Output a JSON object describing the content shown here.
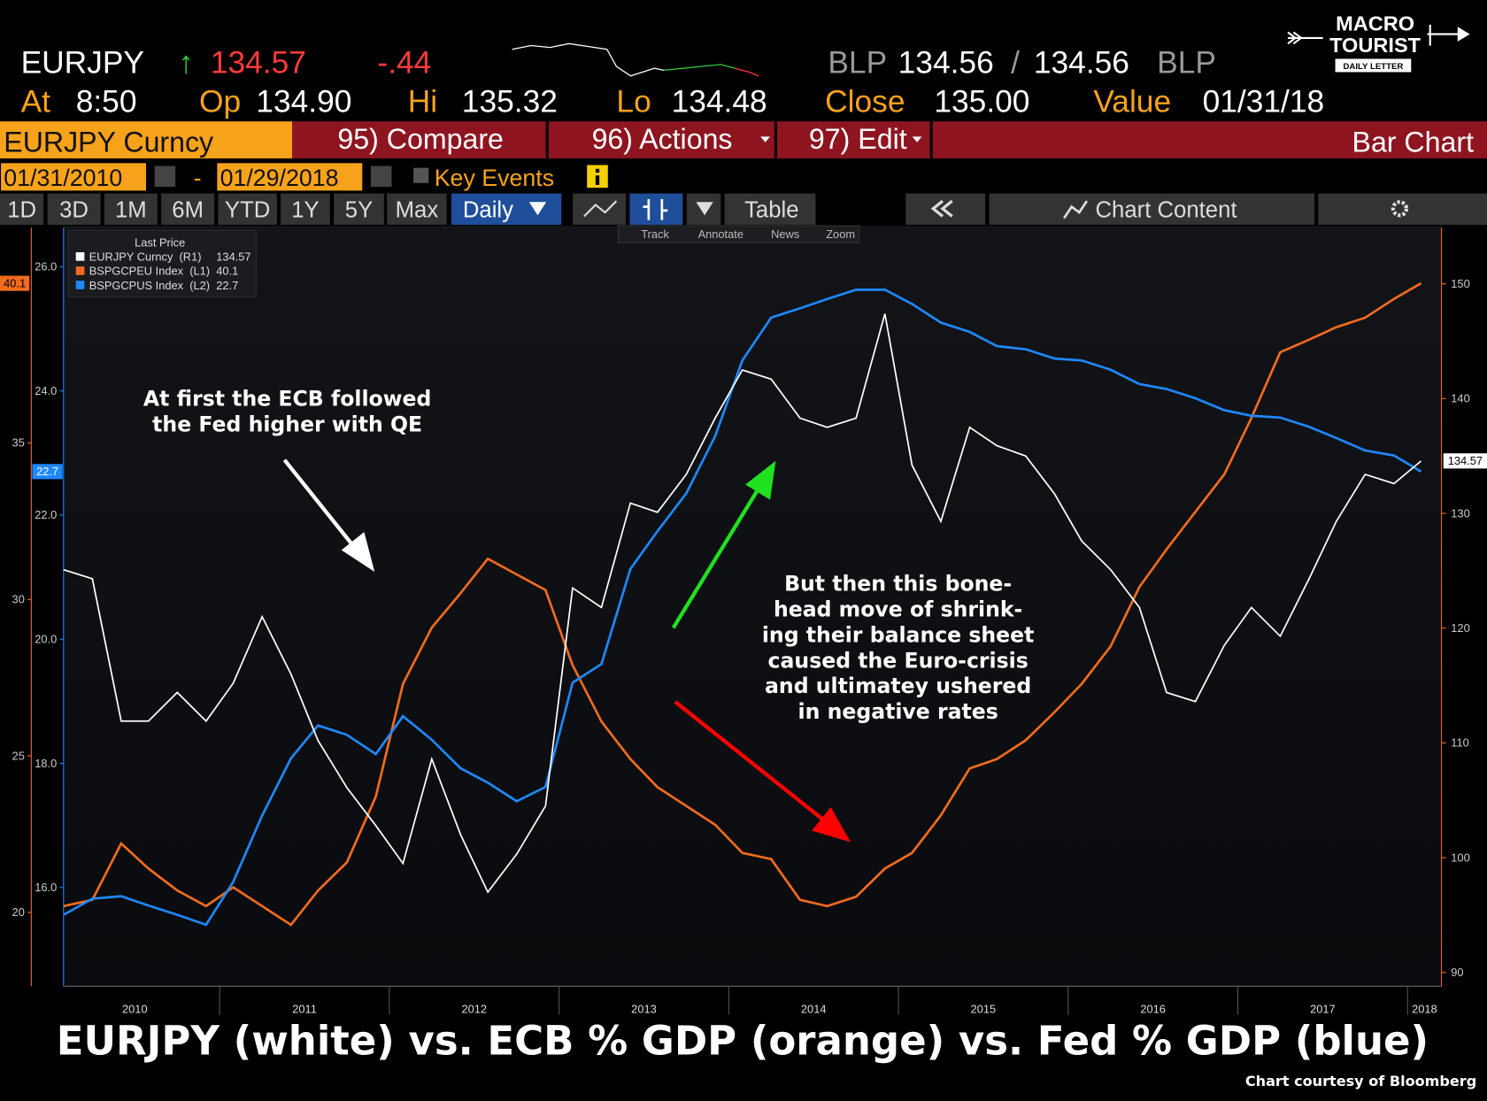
{
  "header": {
    "ticker": "EURJPY",
    "change_arrow": "↑",
    "last": "134.57",
    "change": "-.44",
    "bid_source": "BLP",
    "bid": "134.56",
    "separator": "/",
    "ask": "134.56",
    "ask_source": "BLP",
    "time_label": "At",
    "time": "8:50",
    "open_label": "Op",
    "open": "134.90",
    "high_label": "Hi",
    "high": "135.32",
    "low_label": "Lo",
    "low": "134.48",
    "close_label": "Close",
    "close": "135.00",
    "value_label": "Value",
    "value_date": "01/31/18"
  },
  "toolbar": {
    "security": "EURJPY Curncy",
    "compare": "95) Compare",
    "actions": "96) Actions",
    "edit": "97) Edit",
    "chart_kind": "Bar Chart",
    "start_date": "01/31/2010",
    "date_sep": "-",
    "end_date": "01/29/2018",
    "key_events": "Key Events",
    "periods": [
      "1D",
      "3D",
      "1M",
      "6M",
      "YTD",
      "1Y",
      "5Y",
      "Max"
    ],
    "frequency": "Daily",
    "table": "Table",
    "chart_content": "Chart Content",
    "tools": [
      "Track",
      "Annotate",
      "News",
      "Zoom"
    ]
  },
  "logo": {
    "line1": "MACRO",
    "line2": "TOURIST",
    "tagline": "DAILY LETTER"
  },
  "chart_data": {
    "type": "line",
    "title": "EURJPY (white) vs. ECB % GDP (orange) vs. Fed % GDP (blue)",
    "source": "Chart courtesy of Bloomberg",
    "legend_title": "Last Price",
    "annotations": [
      {
        "lines": [
          "At first the ECB followed",
          "the Fed higher with QE"
        ]
      },
      {
        "lines": [
          "But then this bone-",
          "head move of shrink-",
          "ing their balance sheet",
          "caused the Euro-crisis",
          "and ultimatey ushered",
          "in negative rates"
        ]
      }
    ],
    "x": [
      2010.08,
      2010.25,
      2010.42,
      2010.58,
      2010.75,
      2010.92,
      2011.08,
      2011.25,
      2011.42,
      2011.58,
      2011.75,
      2011.92,
      2012.08,
      2012.25,
      2012.42,
      2012.58,
      2012.75,
      2012.92,
      2013.08,
      2013.25,
      2013.42,
      2013.58,
      2013.75,
      2013.92,
      2014.08,
      2014.25,
      2014.42,
      2014.58,
      2014.75,
      2014.92,
      2015.08,
      2015.25,
      2015.42,
      2015.58,
      2015.75,
      2015.92,
      2016.08,
      2016.25,
      2016.42,
      2016.58,
      2016.75,
      2016.92,
      2017.08,
      2017.25,
      2017.42,
      2017.58,
      2017.75,
      2017.92,
      2018.08
    ],
    "xlim": [
      2010.08,
      2018.2
    ],
    "xticks": [
      {
        "value": 2010.5,
        "label": "2010"
      },
      {
        "value": 2011.5,
        "label": "2011"
      },
      {
        "value": 2012.5,
        "label": "2012"
      },
      {
        "value": 2013.5,
        "label": "2013"
      },
      {
        "value": 2014.5,
        "label": "2014"
      },
      {
        "value": 2015.5,
        "label": "2015"
      },
      {
        "value": 2016.5,
        "label": "2016"
      },
      {
        "value": 2017.5,
        "label": "2017"
      },
      {
        "value": 2018.1,
        "label": "2018"
      }
    ],
    "ylim": [
      88.8,
      154.9
    ],
    "yticks": [
      90,
      100,
      110,
      120,
      130,
      140,
      150
    ],
    "y2lim": [
      17.64,
      41.88
    ],
    "y2ticks": [
      20,
      25,
      30,
      35
    ],
    "y3lim": [
      14.41,
      26.63
    ],
    "y3ticks": [
      {
        "value": 16,
        "label": "16.0"
      },
      {
        "value": 18,
        "label": "18.0"
      },
      {
        "value": 20,
        "label": "20.0"
      },
      {
        "value": 22,
        "label": "22.0"
      },
      {
        "value": 24,
        "label": "24.0"
      },
      {
        "value": 26,
        "label": "26.0"
      }
    ],
    "series": [
      {
        "name": "EURJPY Curncy  (R1)",
        "color": "#ffffff",
        "values": [
          125.1,
          124.3,
          111.9,
          111.9,
          114.4,
          111.9,
          115.2,
          121,
          116,
          110.2,
          106.1,
          102.8,
          99.5,
          108.6,
          102,
          97,
          100.3,
          104.5,
          123.5,
          121.8,
          130.9,
          130.1,
          133.4,
          138.3,
          142.5,
          141.7,
          138.3,
          137.5,
          138.3,
          147.4,
          134.2,
          129.3,
          137.5,
          135.9,
          135,
          131.7,
          127.6,
          125.1,
          121.8,
          114.4,
          113.6,
          118.5,
          121.8,
          119.3,
          124.3,
          129.3,
          133.4,
          132.6,
          134.57
        ]
      },
      {
        "name": "BSPGCPEU Index  (L1)",
        "color": "#f26b1d",
        "axis": "y2",
        "values": [
          20.2,
          20.4,
          22.2,
          21.4,
          20.7,
          20.2,
          20.8,
          20.2,
          19.6,
          20.7,
          21.6,
          23.7,
          27.3,
          29.1,
          30.2,
          31.3,
          30.8,
          30.3,
          27.9,
          26.1,
          24.9,
          24,
          23.4,
          22.8,
          21.9,
          21.7,
          20.4,
          20.2,
          20.5,
          21.4,
          21.9,
          23.1,
          24.6,
          24.9,
          25.5,
          26.4,
          27.3,
          28.5,
          30.4,
          31.6,
          32.8,
          34,
          35.8,
          37.9,
          38.3,
          38.7,
          39,
          39.6,
          40.1
        ]
      },
      {
        "name": "BSPGCPUS Index  (L2)",
        "color": "#1e88ff",
        "axis": "y3",
        "values": [
          15.56,
          15.82,
          15.86,
          15.71,
          15.56,
          15.4,
          16.09,
          17.16,
          18.08,
          18.61,
          18.46,
          18.15,
          18.76,
          18.38,
          17.92,
          17.69,
          17.39,
          17.62,
          19.3,
          19.6,
          21.13,
          21.74,
          22.35,
          23.27,
          24.49,
          25.18,
          25.33,
          25.48,
          25.63,
          25.63,
          25.4,
          25.1,
          24.95,
          24.72,
          24.67,
          24.52,
          24.49,
          24.34,
          24.11,
          24.03,
          23.88,
          23.69,
          23.6,
          23.57,
          23.42,
          23.24,
          23.04,
          22.96,
          22.7
        ]
      }
    ]
  }
}
